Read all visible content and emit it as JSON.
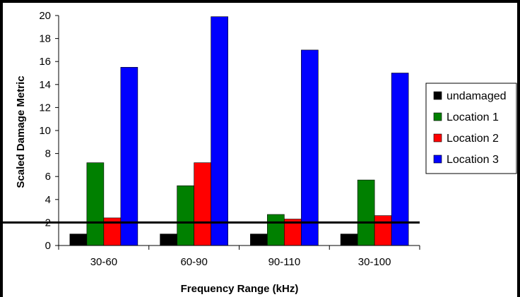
{
  "chart_data": {
    "type": "bar",
    "categories": [
      "30-60",
      "60-90",
      "90-110",
      "30-100"
    ],
    "series": [
      {
        "name": "undamaged",
        "color": "#000000",
        "values": [
          1.0,
          1.0,
          1.0,
          1.0
        ]
      },
      {
        "name": "Location 1",
        "color": "#008000",
        "values": [
          7.2,
          5.2,
          2.7,
          5.7
        ]
      },
      {
        "name": "Location 2",
        "color": "#ff0000",
        "values": [
          2.4,
          7.2,
          2.3,
          2.6
        ]
      },
      {
        "name": "Location 3",
        "color": "#0000ff",
        "values": [
          15.5,
          19.9,
          17.0,
          15.0
        ]
      }
    ],
    "threshold": 2,
    "xlabel": "Frequency Range (kHz)",
    "ylabel": "Scaled Damage Metric",
    "ylim": [
      0,
      20
    ],
    "yticks": [
      0,
      2,
      4,
      6,
      8,
      10,
      12,
      14,
      16,
      18,
      20
    ],
    "grid": false,
    "legend_position": "right",
    "plot_background": "#ffffff"
  }
}
